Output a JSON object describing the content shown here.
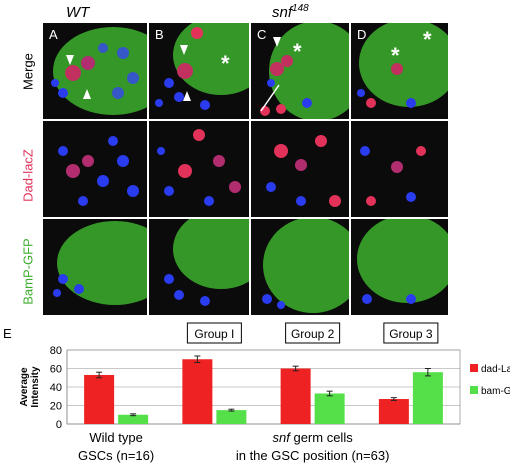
{
  "figure": {
    "column_headers": {
      "wt": "WT",
      "snf_base": "snf",
      "snf_sup": "148"
    },
    "row_labels": [
      "Merge",
      "Dad-lacZ",
      "BamP-GFP"
    ],
    "panel_labels": [
      "A",
      "B",
      "C",
      "D"
    ],
    "colors": {
      "green": "#3fae2f",
      "red": "#e2325a",
      "blue": "#2a3cf0",
      "bg": "#0b0b0b"
    }
  },
  "chart_data": {
    "type": "bar",
    "panel_label": "E",
    "ylabel": "Average Intensity",
    "ylim": [
      0,
      80
    ],
    "yticks": [
      0,
      20,
      40,
      60,
      80
    ],
    "grid": true,
    "legend_position": "right",
    "categories": [
      "Wild type GSCs",
      "Group I",
      "Group 2",
      "Group 3"
    ],
    "group_boxes": [
      "Group I",
      "Group 2",
      "Group 3"
    ],
    "x_captions": {
      "wt_line1": "Wild type",
      "wt_line2": "GSCs (n=16)",
      "snf_line1_italic": "snf",
      "snf_line1_rest": " germ cells",
      "snf_line2": "in the GSC position (n=63)"
    },
    "series": [
      {
        "name": "dad-LacZ",
        "color": "#ee2222",
        "values": [
          53,
          70,
          60,
          27
        ],
        "errors": [
          3,
          3.5,
          2.5,
          1.5
        ]
      },
      {
        "name": "bam-GFP",
        "color": "#55e04a",
        "values": [
          10,
          15,
          33,
          56
        ],
        "errors": [
          1,
          1,
          2.5,
          4
        ]
      }
    ]
  }
}
